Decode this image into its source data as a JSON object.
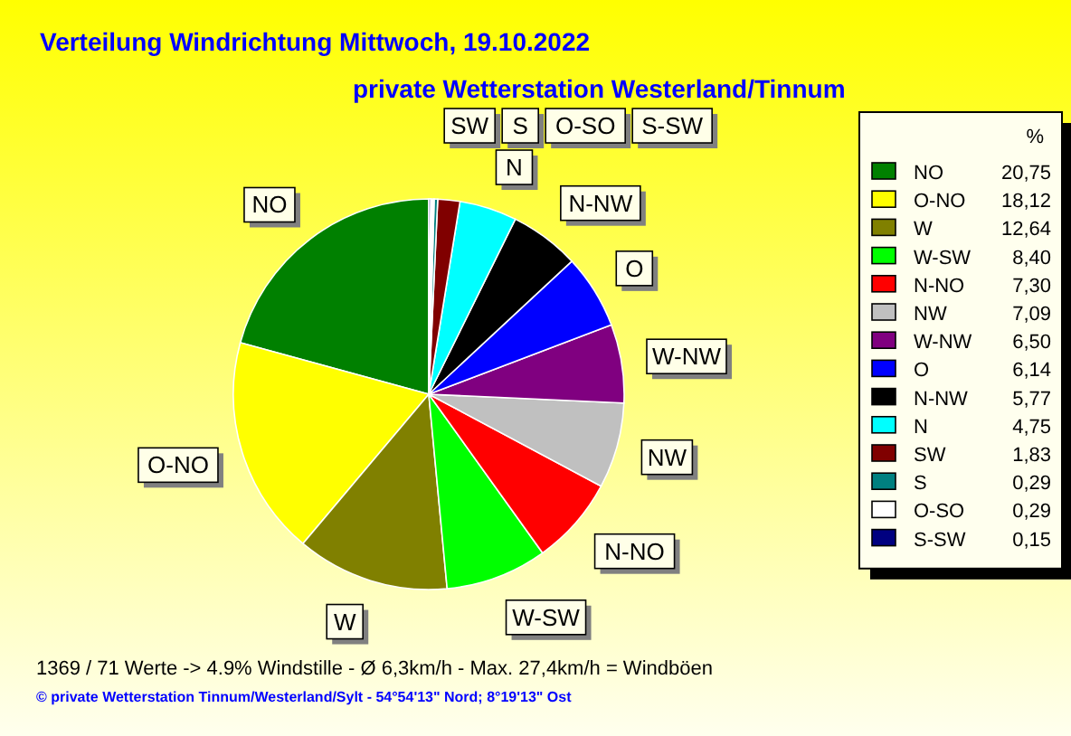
{
  "chart_data": {
    "type": "pie",
    "title": "Verteilung Windrichtung   Mittwoch, 19.10.2022",
    "subtitle": "private Wetterstation Westerland/Tinnum",
    "legend_title": "%",
    "legend": "right",
    "categories": [
      "NO",
      "O-NO",
      "W",
      "W-SW",
      "N-NO",
      "NW",
      "W-NW",
      "O",
      "N-NW",
      "N",
      "SW",
      "S",
      "O-SO",
      "S-SW"
    ],
    "values": [
      20.75,
      18.12,
      12.64,
      8.4,
      7.3,
      7.09,
      6.5,
      6.14,
      5.77,
      4.75,
      1.83,
      0.29,
      0.29,
      0.15
    ],
    "value_labels": [
      "20,75",
      "18,12",
      "12,64",
      "8,40",
      "7,30",
      "7,09",
      "6,50",
      "6,14",
      "5,77",
      "4,75",
      "1,83",
      "0,29",
      "0,29",
      "0,15"
    ],
    "colors": [
      "#008000",
      "#ffff00",
      "#808000",
      "#00ff00",
      "#ff0000",
      "#c0c0c0",
      "#800080",
      "#0000ff",
      "#000000",
      "#00ffff",
      "#800000",
      "#008080",
      "#ffffff",
      "#000080"
    ],
    "annotations": [
      "1369 / 71 Werte  -> 4.9% Windstille   -   Ø 6,3km/h  -  Max. 27,4km/h = Windböen",
      "© private Wetterstation Tinnum/Westerland/Sylt   -   54°54'13\" Nord; 8°19'13\" Ost"
    ]
  }
}
